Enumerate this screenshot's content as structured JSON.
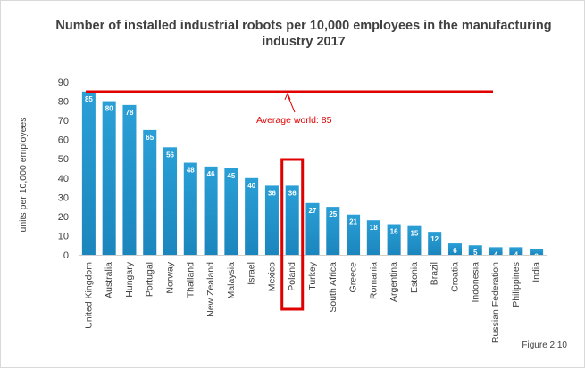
{
  "chart_data": {
    "type": "bar",
    "title": "Number of installed industrial robots per 10,000 employees in the manufacturing industry 2017",
    "ylabel": "units per 10,000 employees",
    "xlabel": "",
    "ylim": [
      0,
      90
    ],
    "yticks": [
      0,
      10,
      20,
      30,
      40,
      50,
      60,
      70,
      80,
      90
    ],
    "categories": [
      "United Kingdom",
      "Australia",
      "Hungary",
      "Portugal",
      "Norway",
      "Thailand",
      "New Zealand",
      "Malaysia",
      "Israel",
      "Mexico",
      "Poland",
      "Turkey",
      "South Africa",
      "Greece",
      "Romania",
      "Argentina",
      "Estonia",
      "Brazil",
      "Croatia",
      "Indonesia",
      "Russian Federation",
      "Philippines",
      "India"
    ],
    "values": [
      85,
      80,
      78,
      65,
      56,
      48,
      46,
      45,
      40,
      36,
      36,
      27,
      25,
      21,
      18,
      16,
      15,
      12,
      6,
      5,
      4,
      4,
      3
    ],
    "bar_color": "#2a9fd6",
    "average_line": {
      "value": 85,
      "label": "Average world: 85",
      "color": "#e00000"
    },
    "highlight_category": "Poland",
    "highlight_color": "#e00000",
    "grid": false,
    "legend": "none"
  },
  "figure_label": "Figure 2.10"
}
